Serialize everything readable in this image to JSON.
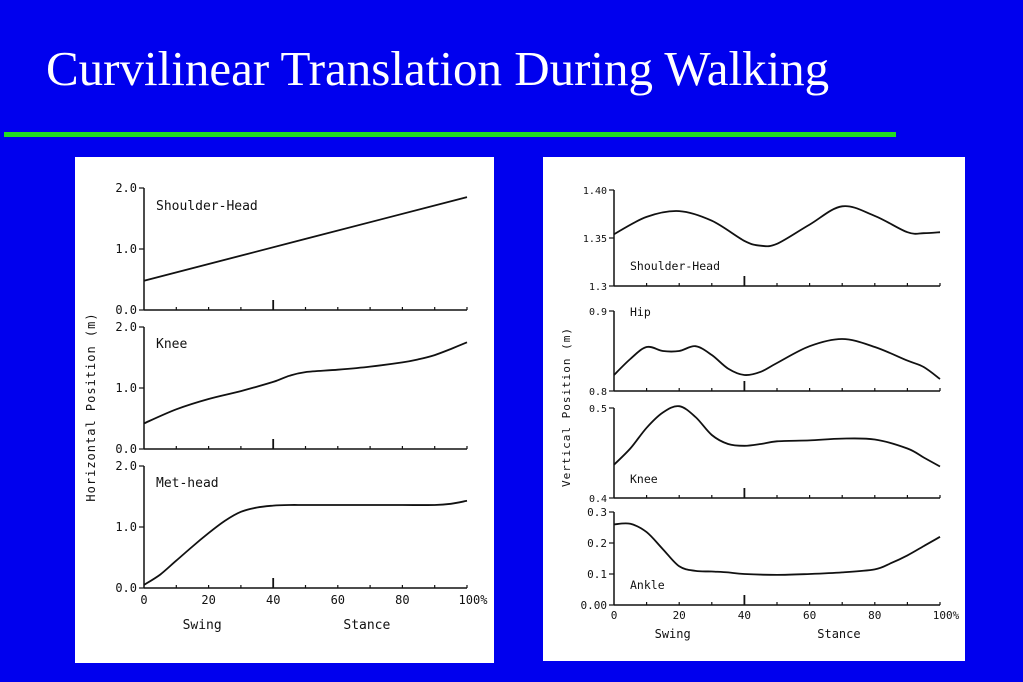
{
  "slide": {
    "title": "Curvilinear Translation During Walking",
    "title_color": "#ffffff",
    "background_color": "#0000ee",
    "rule_color": "#22dd22"
  },
  "left_figure": {
    "ylabel": "Horizontal Position  (m)",
    "x_ticks": [
      "0",
      "20",
      "40",
      "60",
      "80",
      "100%"
    ],
    "phase_labels": [
      "Swing",
      "Stance"
    ]
  },
  "right_figure": {
    "ylabel": "Vertical Position  (m)",
    "x_ticks": [
      "0",
      "20",
      "40",
      "60",
      "80",
      "100%"
    ],
    "phase_labels": [
      "Swing",
      "Stance"
    ]
  },
  "chart_data": [
    {
      "type": "line",
      "title": "Shoulder-Head",
      "xlabel": "",
      "ylabel": "Horizontal Position  (m)",
      "ylim": [
        0,
        2.0
      ],
      "y_ticks": [
        "2.0",
        "1.0",
        "0.0"
      ],
      "series": [
        {
          "x": [
            0,
            100
          ],
          "values": [
            0.48,
            1.85
          ]
        }
      ]
    },
    {
      "type": "line",
      "title": "Knee",
      "ylim": [
        0,
        2.0
      ],
      "y_ticks": [
        "2.0",
        "1.0",
        "0.0"
      ],
      "series": [
        {
          "x": [
            0,
            10,
            20,
            30,
            40,
            45,
            50,
            60,
            70,
            80,
            85,
            90,
            95,
            100
          ],
          "values": [
            0.42,
            0.65,
            0.82,
            0.95,
            1.1,
            1.2,
            1.26,
            1.3,
            1.35,
            1.42,
            1.47,
            1.54,
            1.64,
            1.75
          ]
        }
      ]
    },
    {
      "type": "line",
      "title": "Met-head",
      "ylim": [
        0,
        2.0
      ],
      "y_ticks": [
        "2.0",
        "1.0",
        "0.0"
      ],
      "series": [
        {
          "x": [
            0,
            5,
            10,
            15,
            20,
            25,
            30,
            35,
            40,
            45,
            50,
            60,
            70,
            80,
            90,
            95,
            100
          ],
          "values": [
            0.05,
            0.22,
            0.45,
            0.68,
            0.9,
            1.1,
            1.25,
            1.32,
            1.35,
            1.36,
            1.36,
            1.36,
            1.36,
            1.36,
            1.36,
            1.38,
            1.43
          ]
        }
      ]
    },
    {
      "type": "line",
      "title": "Shoulder-Head",
      "ylim": [
        1.3,
        1.4
      ],
      "y_ticks": [
        "1.40",
        "1.35",
        "1.3"
      ],
      "series": [
        {
          "x": [
            0,
            10,
            20,
            30,
            40,
            45,
            50,
            60,
            70,
            80,
            90,
            95,
            100
          ],
          "values": [
            1.354,
            1.372,
            1.378,
            1.368,
            1.347,
            1.342,
            1.344,
            1.364,
            1.383,
            1.373,
            1.356,
            1.355,
            1.356
          ]
        }
      ]
    },
    {
      "type": "line",
      "title": "Hip",
      "ylim": [
        0.8,
        0.9
      ],
      "y_ticks": [
        "0.9",
        "0.8"
      ],
      "series": [
        {
          "x": [
            0,
            5,
            10,
            15,
            20,
            25,
            30,
            35,
            40,
            45,
            50,
            60,
            70,
            80,
            90,
            95,
            100
          ],
          "values": [
            0.82,
            0.84,
            0.855,
            0.85,
            0.85,
            0.856,
            0.845,
            0.828,
            0.82,
            0.824,
            0.835,
            0.856,
            0.865,
            0.855,
            0.838,
            0.83,
            0.815
          ]
        }
      ]
    },
    {
      "type": "line",
      "title": "Knee",
      "ylim": [
        0.4,
        0.5
      ],
      "y_ticks": [
        "0.5",
        "0.4"
      ],
      "series": [
        {
          "x": [
            0,
            5,
            10,
            15,
            20,
            25,
            30,
            35,
            40,
            45,
            50,
            60,
            70,
            80,
            90,
            95,
            100
          ],
          "values": [
            0.437,
            0.455,
            0.478,
            0.495,
            0.502,
            0.49,
            0.47,
            0.46,
            0.458,
            0.46,
            0.463,
            0.464,
            0.466,
            0.465,
            0.455,
            0.445,
            0.435
          ]
        }
      ]
    },
    {
      "type": "line",
      "title": "Ankle",
      "ylim": [
        0.0,
        0.3
      ],
      "y_ticks": [
        "0.3",
        "0.2",
        "0.1",
        "0.00"
      ],
      "series": [
        {
          "x": [
            0,
            5,
            10,
            15,
            20,
            25,
            30,
            35,
            40,
            50,
            60,
            70,
            80,
            85,
            90,
            95,
            100
          ],
          "values": [
            0.26,
            0.262,
            0.235,
            0.18,
            0.125,
            0.11,
            0.108,
            0.105,
            0.1,
            0.097,
            0.1,
            0.105,
            0.115,
            0.135,
            0.16,
            0.19,
            0.22
          ]
        }
      ]
    }
  ]
}
